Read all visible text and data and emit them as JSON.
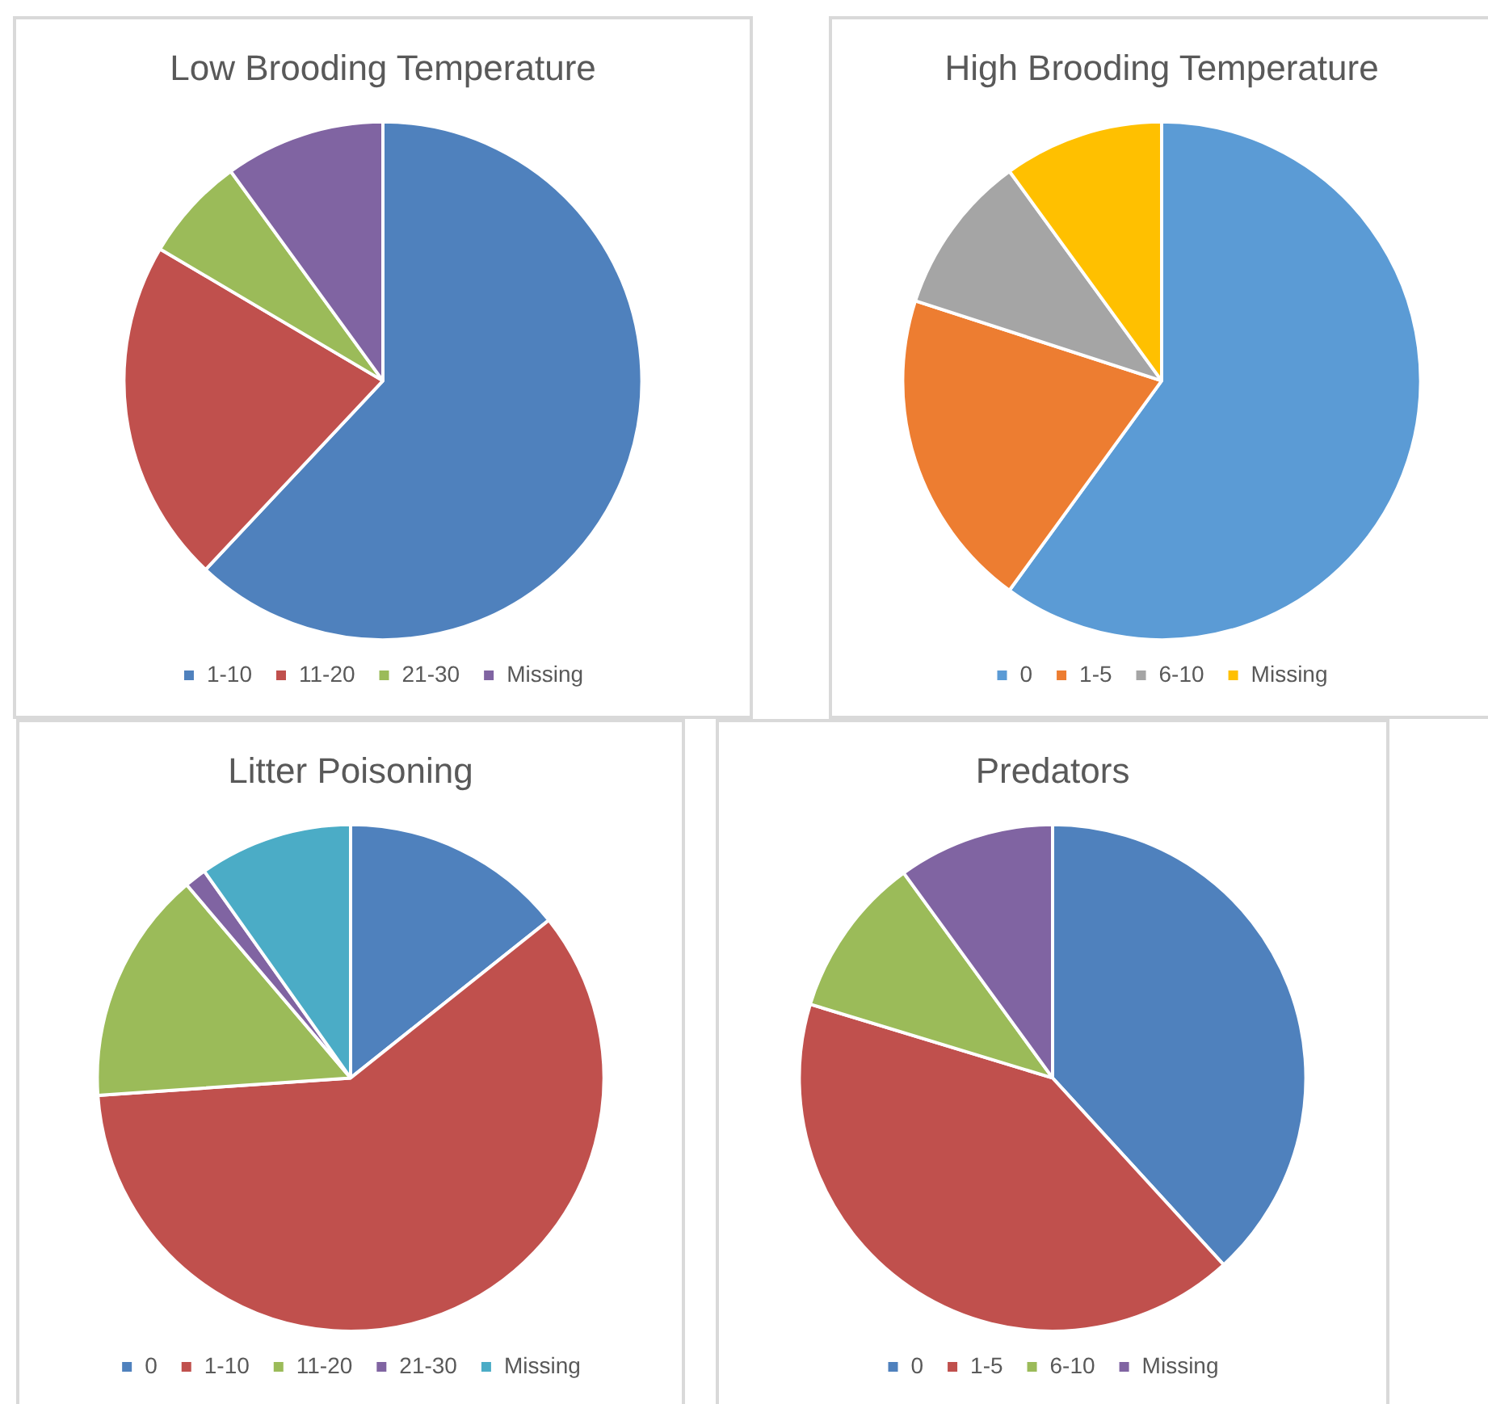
{
  "chart_data": [
    {
      "type": "pie",
      "title": "Low Brooding Temperature",
      "categories": [
        "1-10",
        "11-20",
        "21-30",
        "Missing"
      ],
      "values": [
        62,
        21.5,
        6.5,
        10
      ],
      "colors": [
        "#4f81bd",
        "#c0504d",
        "#9bbb59",
        "#8064a2"
      ],
      "legend": "bottom"
    },
    {
      "type": "pie",
      "title": "High Brooding Temperature",
      "categories": [
        "0",
        "1-5",
        "6-10",
        "Missing"
      ],
      "values": [
        60,
        20,
        10,
        10
      ],
      "colors": [
        "#5b9bd5",
        "#ed7d31",
        "#a5a5a5",
        "#ffc000"
      ],
      "legend": "bottom"
    },
    {
      "type": "pie",
      "title": "Litter Poisoning",
      "categories": [
        "0",
        "1-10",
        "11-20",
        "21-30",
        "Missing"
      ],
      "values": [
        14.3,
        59.6,
        14.9,
        1.4,
        9.8
      ],
      "colors": [
        "#4f81bd",
        "#c0504d",
        "#9bbb59",
        "#8064a2",
        "#4bacc6"
      ],
      "legend": "bottom"
    },
    {
      "type": "pie",
      "title": "Predators",
      "categories": [
        "0",
        "1-5",
        "6-10",
        "Missing"
      ],
      "values": [
        38.2,
        41.5,
        10.3,
        10
      ],
      "colors": [
        "#4f81bd",
        "#c0504d",
        "#9bbb59",
        "#8064a2"
      ],
      "legend": "bottom"
    }
  ]
}
